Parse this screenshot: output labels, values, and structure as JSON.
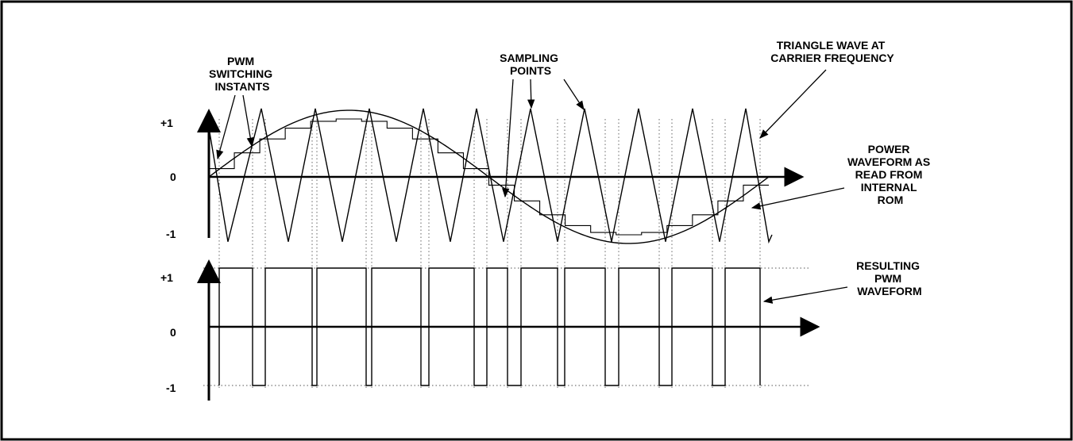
{
  "figure": {
    "top_axis_ticks": [
      "+1",
      "0",
      "-1"
    ],
    "bottom_axis_ticks": [
      "+1",
      "0",
      "-1"
    ],
    "labels": {
      "pwm_switching": [
        "PWM",
        "SWITCHING",
        "INSTANTS"
      ],
      "sampling_points": [
        "SAMPLING",
        "POINTS"
      ],
      "triangle_wave": [
        "TRIANGLE WAVE AT",
        "CARRIER FREQUENCY"
      ],
      "power_waveform": [
        "POWER",
        "WAVEFORM AS",
        "READ FROM",
        "INTERNAL",
        "ROM"
      ],
      "resulting_pwm": [
        "RESULTING",
        "PWM",
        "WAVEFORM"
      ]
    }
  }
}
